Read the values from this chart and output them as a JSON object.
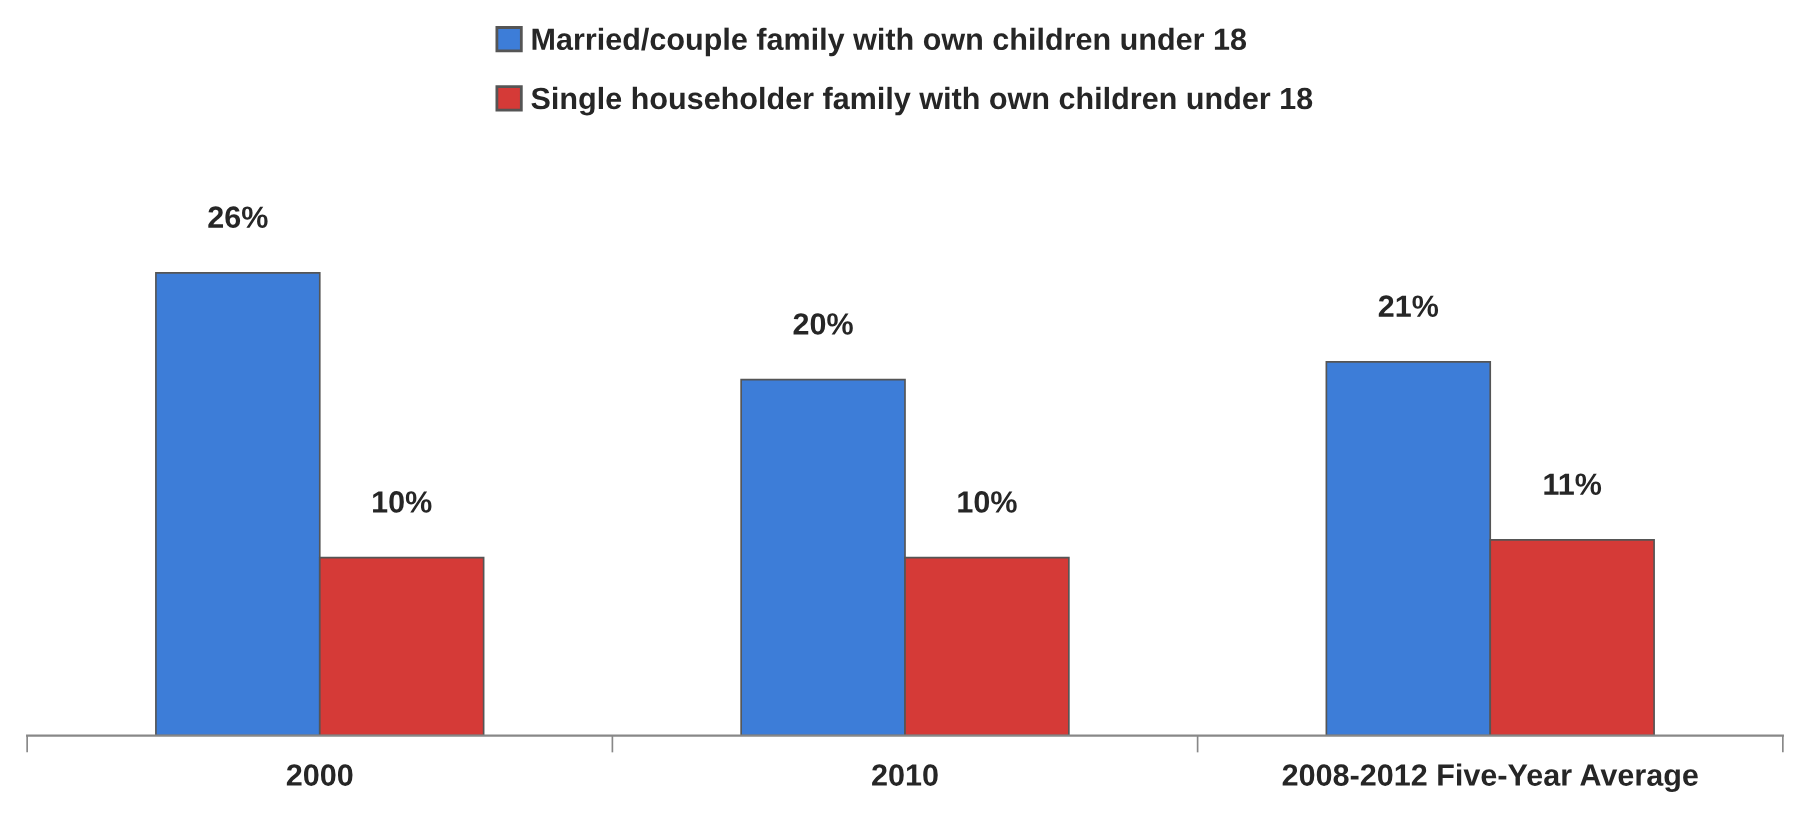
{
  "chart_data": {
    "type": "bar",
    "categories": [
      "2000",
      "2010",
      "2008-2012 Five-Year Average"
    ],
    "series": [
      {
        "name": "Married/couple family with own children under 18",
        "color": "#3d7dd8",
        "values": [
          26,
          20,
          21
        ],
        "value_labels": [
          "26%",
          "20%",
          "21%"
        ]
      },
      {
        "name": "Single householder family with own children under 18",
        "color": "#d53a37",
        "values": [
          10,
          10,
          11
        ],
        "value_labels": [
          "10%",
          "10%",
          "11%"
        ]
      }
    ],
    "tick_labels": "x",
    "legend": "top",
    "grid": false
  }
}
